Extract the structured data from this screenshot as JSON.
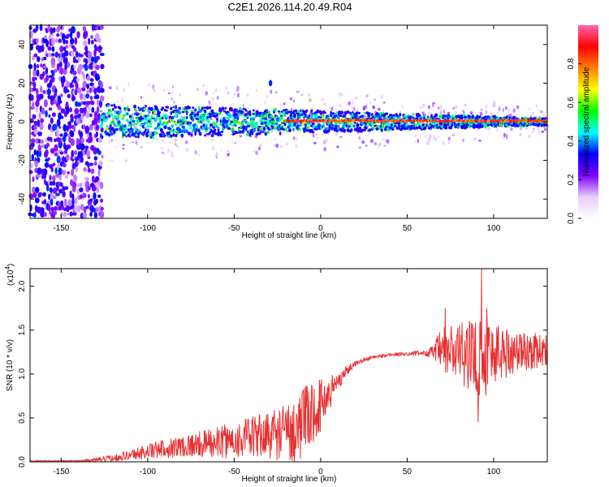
{
  "title": "C2E1.2026.114.20.49.R04",
  "chart_data": [
    {
      "type": "heatmap",
      "xlabel": "Height of straight line (km)",
      "ylabel": "Frequency (Hz)",
      "xlim": [
        -168,
        131
      ],
      "ylim": [
        -50,
        50
      ],
      "xticks": [
        -150,
        -100,
        -50,
        0,
        50,
        100
      ],
      "xtick_labels": [
        "-150",
        "-100",
        "-50",
        "0",
        "50",
        "100"
      ],
      "yticks": [
        -40,
        -20,
        0,
        20,
        40
      ],
      "ytick_labels": [
        "-40",
        "-20",
        "0",
        "20",
        "40"
      ],
      "colorbar": {
        "label": "Normalized spectral amplitude",
        "range": [
          0.0,
          1.0
        ],
        "ticks": [
          0.0,
          0.2,
          0.4,
          0.6,
          0.8
        ],
        "tick_labels": [
          "0.0",
          "0.2",
          "0.4",
          "0.6",
          "0.8"
        ],
        "stops": [
          "#ffffff",
          "#e6ccff",
          "#8000ff",
          "#0000ff",
          "#00ffff",
          "#00ff00",
          "#ffff00",
          "#ff8000",
          "#ff0000",
          "#ff66aa"
        ]
      },
      "features": [
        {
          "name": "noise region",
          "x_range": [
            -168,
            -127
          ],
          "f_range": [
            -50,
            50
          ],
          "amplitude": 0.2
        },
        {
          "name": "spectral band",
          "x_range": [
            -127,
            131
          ],
          "center_hz": 0,
          "half_width_hz_start": 10,
          "half_width_hz_end": 2
        },
        {
          "name": "peak line",
          "x_range": [
            -20,
            131
          ],
          "center_hz": 0.5,
          "amplitude": 0.9
        },
        {
          "name": "isolated component",
          "x": -29,
          "f": 20,
          "amplitude": 0.35
        }
      ]
    },
    {
      "type": "line",
      "xlabel": "Height of straight line (km)",
      "ylabel": "SNR (10 * v/v)",
      "y_multiplier": "(x10",
      "y_multiplier_exp": "4",
      "y_multiplier_close": ")",
      "xlim": [
        -168,
        131
      ],
      "ylim": [
        0,
        2.2
      ],
      "xticks": [
        -150,
        -100,
        -50,
        0,
        50,
        100
      ],
      "xtick_labels": [
        "-150",
        "-100",
        "-50",
        "0",
        "50",
        "100"
      ],
      "yticks": [
        0.0,
        0.5,
        1.0,
        1.5,
        2.0
      ],
      "ytick_labels": [
        "0.0",
        "0.5",
        "1.0",
        "1.5",
        "2.0"
      ],
      "color": "#e83030",
      "envelope": {
        "x": [
          -168,
          -140,
          -125,
          -110,
          -100,
          -90,
          -80,
          -70,
          -60,
          -50,
          -40,
          -30,
          -20,
          -15,
          -10,
          -5,
          0,
          5,
          10,
          15,
          20,
          30,
          40,
          50,
          60,
          65,
          70,
          75,
          80,
          85,
          90,
          95,
          100,
          110,
          120,
          131
        ],
        "center": [
          0.01,
          0.01,
          0.03,
          0.08,
          0.12,
          0.15,
          0.18,
          0.2,
          0.22,
          0.25,
          0.28,
          0.31,
          0.34,
          0.36,
          0.45,
          0.55,
          0.65,
          0.78,
          0.92,
          1.04,
          1.12,
          1.19,
          1.22,
          1.23,
          1.24,
          1.25,
          1.26,
          1.25,
          1.24,
          1.22,
          1.2,
          1.22,
          1.24,
          1.25,
          1.26,
          1.27
        ],
        "spread": [
          0.005,
          0.008,
          0.03,
          0.06,
          0.09,
          0.11,
          0.13,
          0.15,
          0.18,
          0.21,
          0.24,
          0.28,
          0.34,
          0.38,
          0.4,
          0.38,
          0.3,
          0.22,
          0.12,
          0.06,
          0.03,
          0.02,
          0.02,
          0.02,
          0.03,
          0.08,
          0.28,
          0.34,
          0.36,
          0.38,
          0.45,
          0.5,
          0.4,
          0.26,
          0.22,
          0.18
        ]
      },
      "peaks": [
        {
          "x": 93,
          "y": 2.2
        },
        {
          "x": 96,
          "y": 1.75
        },
        {
          "x": 72,
          "y": 1.75
        },
        {
          "x": 91,
          "y": 0.45
        }
      ]
    }
  ]
}
